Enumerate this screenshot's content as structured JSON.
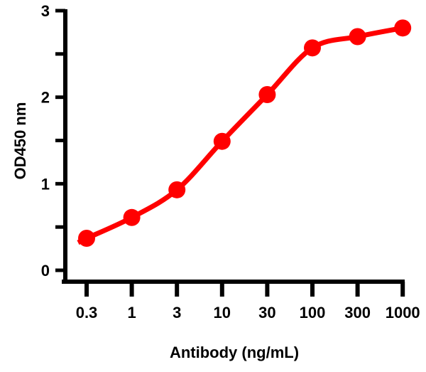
{
  "chart_data": {
    "type": "line",
    "title": "",
    "xlabel": "Antibody (ng/mL)",
    "ylabel": "OD450 nm",
    "x_scale": "log",
    "categories": [
      "0.3",
      "1",
      "3",
      "10",
      "30",
      "100",
      "300",
      "1000"
    ],
    "x": [
      0.3,
      1,
      3,
      10,
      30,
      100,
      300,
      1000
    ],
    "y_ticks": [
      "0",
      "1",
      "2",
      "3"
    ],
    "ylim": [
      0,
      3
    ],
    "grid": false,
    "series": [
      {
        "values": [
          0.37,
          0.61,
          0.93,
          1.49,
          2.03,
          2.57,
          2.7,
          2.8
        ],
        "color": "#ff0000",
        "markers": "circle",
        "fit_curve": true
      }
    ]
  }
}
